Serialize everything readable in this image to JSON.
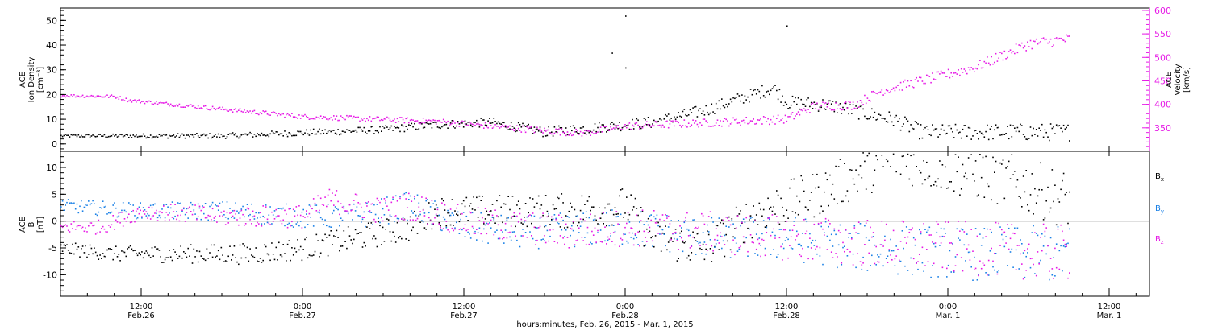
{
  "figure": {
    "time_axis": {
      "start": "2015-02-26T06:00",
      "end": "2015-03-01T15:00",
      "time_labels": [
        "12:00",
        "0:00",
        "12:00",
        "0:00",
        "12:00",
        "0:00",
        "12:00"
      ],
      "date_labels": [
        "Feb.26",
        "Feb.27",
        "Feb.27",
        "Feb.28",
        "Feb.28",
        "Mar. 1",
        "Mar. 1"
      ],
      "tick_times": [
        "2015-02-26T12:00",
        "2015-02-27T00:00",
        "2015-02-27T12:00",
        "2015-02-28T00:00",
        "2015-02-28T12:00",
        "2015-03-01T00:00",
        "2015-03-01T12:00"
      ],
      "caption": "hours:minutes, Feb. 26, 2015 - Mar. 1, 2015"
    },
    "colors": {
      "black": "#000000",
      "magenta": "#e619e6",
      "blue": "#1a80e6"
    }
  },
  "chart_data": [
    {
      "type": "scatter",
      "panel": "top",
      "left_axis": {
        "label_lines": [
          "ACE",
          "Ion Density",
          "[cm⁻³]"
        ],
        "ylim": [
          -3,
          55
        ],
        "ticks": [
          "0",
          "10",
          "20",
          "30",
          "40",
          "50"
        ]
      },
      "right_axis": {
        "label_lines": [
          "ACE",
          "Velocity",
          "[km/s]"
        ],
        "ylim": [
          300,
          605
        ],
        "ticks": [
          "350",
          "400",
          "450",
          "500",
          "550",
          "600"
        ]
      },
      "series": [
        {
          "color": "black",
          "axis": "left",
          "spread": 0.6,
          "points": [
            [
              "2015-02-26T06:00",
              3.5
            ],
            [
              "2015-02-26T18:00",
              3.5
            ],
            [
              "2015-02-27T06:00",
              6
            ],
            [
              "2015-02-27T10:00",
              8
            ],
            [
              "2015-02-27T14:00",
              9
            ],
            [
              "2015-02-27T18:00",
              5
            ],
            [
              "2015-02-27T20:00",
              6
            ],
            [
              "2015-02-28T02:00",
              9
            ],
            [
              "2015-02-28T06:00",
              14
            ],
            [
              "2015-02-28T11:00",
              23
            ],
            [
              "2015-02-28T12:00",
              17
            ],
            [
              "2015-02-28T15:00",
              16
            ],
            [
              "2015-02-28T20:00",
              10
            ],
            [
              "2015-02-28T22:00",
              5
            ],
            [
              "2015-03-01T05:00",
              5
            ],
            [
              "2015-03-01T09:00",
              5
            ]
          ]
        },
        {
          "color": "magenta",
          "axis": "right",
          "spread": 3,
          "points": [
            [
              "2015-02-26T06:00",
              420
            ],
            [
              "2015-02-26T10:00",
              418
            ],
            [
              "2015-02-26T11:00",
              410
            ],
            [
              "2015-02-27T00:00",
              375
            ],
            [
              "2015-02-27T10:00",
              365
            ],
            [
              "2015-02-27T18:00",
              345
            ],
            [
              "2015-02-27T21:00",
              340
            ],
            [
              "2015-02-28T00:00",
              355
            ],
            [
              "2015-02-28T06:00",
              362
            ],
            [
              "2015-02-28T12:00",
              370
            ],
            [
              "2015-02-28T14:00",
              397
            ],
            [
              "2015-02-28T17:00",
              400
            ],
            [
              "2015-02-28T19:00",
              430
            ],
            [
              "2015-03-01T02:00",
              480
            ],
            [
              "2015-03-01T06:00",
              530
            ],
            [
              "2015-03-01T09:00",
              540
            ]
          ]
        }
      ],
      "outliers": [
        {
          "color": "black",
          "axis": "left",
          "x": "2015-02-28T00:00",
          "y": 52
        },
        {
          "color": "black",
          "axis": "left",
          "x": "2015-02-28T00:00",
          "y": 31
        },
        {
          "color": "black",
          "axis": "left",
          "x": "2015-02-28T12:00",
          "y": 48
        },
        {
          "color": "black",
          "axis": "left",
          "x": "2015-02-27T23:00",
          "y": 37
        }
      ]
    },
    {
      "type": "scatter",
      "panel": "bottom",
      "left_axis": {
        "label_lines": [
          "ACE",
          "B",
          "[nT]"
        ],
        "ylim": [
          -14,
          13
        ],
        "ticks": [
          "-10",
          "-5",
          "0",
          "5",
          "10"
        ],
        "zero_line": true
      },
      "legend": {
        "placement": "right",
        "entries": [
          "Bx",
          "By",
          "Bz"
        ]
      },
      "series": [
        {
          "name": "Bx",
          "color": "black",
          "points": [
            [
              "2015-02-26T06:00",
              -5
            ],
            [
              "2015-02-26T10:00",
              -6
            ],
            [
              "2015-02-26T20:00",
              -6
            ],
            [
              "2015-02-27T00:00",
              -5
            ],
            [
              "2015-02-27T04:00",
              -3
            ],
            [
              "2015-02-27T08:00",
              -1
            ],
            [
              "2015-02-27T10:00",
              2
            ],
            [
              "2015-02-27T20:00",
              2
            ],
            [
              "2015-02-28T00:00",
              3
            ],
            [
              "2015-02-28T02:00",
              -3
            ],
            [
              "2015-02-28T06:00",
              -5
            ],
            [
              "2015-02-28T10:00",
              2
            ],
            [
              "2015-02-28T14:00",
              5
            ],
            [
              "2015-02-28T20:00",
              12
            ],
            [
              "2015-03-01T04:00",
              8
            ],
            [
              "2015-03-01T09:00",
              4
            ]
          ]
        },
        {
          "name": "By",
          "color": "blue",
          "points": [
            [
              "2015-02-26T06:00",
              3
            ],
            [
              "2015-02-26T12:00",
              2
            ],
            [
              "2015-02-26T18:00",
              2
            ],
            [
              "2015-02-27T00:00",
              1
            ],
            [
              "2015-02-27T04:00",
              1
            ],
            [
              "2015-02-27T08:00",
              3
            ],
            [
              "2015-02-27T12:00",
              -1
            ],
            [
              "2015-02-27T16:00",
              -2
            ],
            [
              "2015-02-28T00:00",
              -1
            ],
            [
              "2015-02-28T06:00",
              -3
            ],
            [
              "2015-02-28T12:00",
              -3
            ],
            [
              "2015-02-28T18:00",
              -5
            ],
            [
              "2015-03-01T02:00",
              -6
            ],
            [
              "2015-03-01T09:00",
              -6
            ]
          ]
        },
        {
          "name": "Bz",
          "color": "magenta",
          "points": [
            [
              "2015-02-26T06:00",
              -1
            ],
            [
              "2015-02-26T09:00",
              -1
            ],
            [
              "2015-02-26T12:00",
              2
            ],
            [
              "2015-02-26T18:00",
              1
            ],
            [
              "2015-02-27T00:00",
              1
            ],
            [
              "2015-02-27T02:00",
              4
            ],
            [
              "2015-02-27T06:00",
              2
            ],
            [
              "2015-02-27T08:00",
              3
            ],
            [
              "2015-02-27T12:00",
              0
            ],
            [
              "2015-02-27T20:00",
              -2
            ],
            [
              "2015-02-28T00:00",
              -1
            ],
            [
              "2015-02-28T06:00",
              -2
            ],
            [
              "2015-02-28T12:00",
              -3
            ],
            [
              "2015-02-28T18:00",
              -4
            ],
            [
              "2015-03-01T02:00",
              -5
            ],
            [
              "2015-03-01T09:00",
              -6
            ]
          ]
        }
      ]
    }
  ]
}
